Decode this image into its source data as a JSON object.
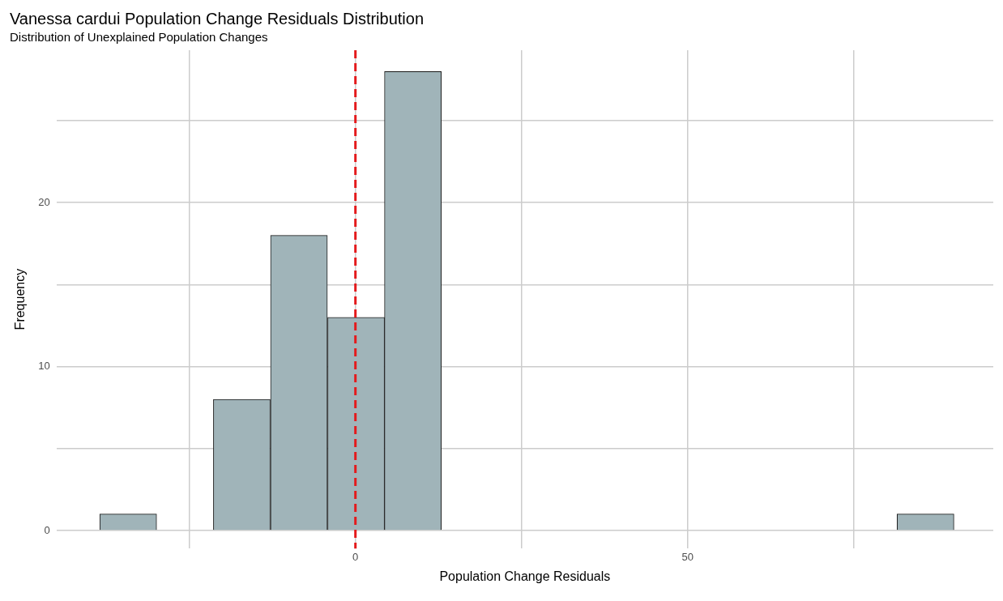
{
  "chart_data": {
    "type": "histogram",
    "title": "Vanessa cardui Population Change Residuals Distribution",
    "subtitle": "Distribution of Unexplained Population Changes",
    "xlabel": "Population Change Residuals",
    "ylabel": "Frequency",
    "bins": [
      -38.5,
      -29.9,
      -21.4,
      -12.8,
      -4.2,
      4.4,
      12.9,
      21.5,
      30.1,
      38.6,
      47.2,
      55.8,
      64.3,
      72.9,
      81.5,
      90.1
    ],
    "values": [
      1,
      0,
      8,
      18,
      13,
      28,
      0,
      0,
      0,
      0,
      0,
      0,
      0,
      0,
      1
    ],
    "color": "#a0b4b9",
    "xlim": [
      -45,
      96
    ],
    "xticks": [
      {
        "value": -25,
        "label": null
      },
      0,
      {
        "value": 25,
        "label": null
      },
      50,
      {
        "value": 75,
        "label": null
      }
    ],
    "ylim": [
      -1.1,
      29.3
    ],
    "yticks": [
      0,
      {
        "value": 5,
        "label": null
      },
      10,
      {
        "value": 15,
        "label": null
      },
      20,
      {
        "value": 25,
        "label": null
      }
    ],
    "grid": true,
    "legend": false,
    "ref_lines": [
      {
        "axis": "x",
        "value": 0,
        "label": null,
        "color": "#e41a1c",
        "line_style": "dashed"
      }
    ]
  }
}
